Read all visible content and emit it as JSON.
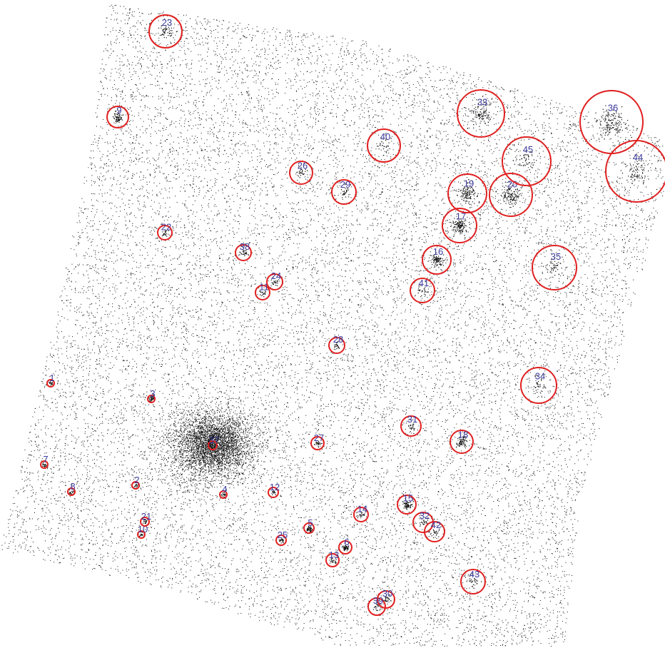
{
  "image": {
    "kind": "x-ray-event-map",
    "colors": {
      "background": "#ffffff",
      "photon": "#111111",
      "circle": "#e02020",
      "label": "#3b3b9e"
    }
  },
  "sources": [
    {
      "id": "1"
    },
    {
      "id": "2"
    },
    {
      "id": "3"
    },
    {
      "id": "4"
    },
    {
      "id": "5"
    },
    {
      "id": "6"
    },
    {
      "id": "7"
    },
    {
      "id": "8"
    },
    {
      "id": "9"
    },
    {
      "id": "10"
    },
    {
      "id": "11"
    },
    {
      "id": "12"
    },
    {
      "id": "13"
    },
    {
      "id": "14"
    },
    {
      "id": "15"
    },
    {
      "id": "16"
    },
    {
      "id": "17"
    },
    {
      "id": "18"
    },
    {
      "id": "19"
    },
    {
      "id": "20"
    },
    {
      "id": "21"
    },
    {
      "id": "22"
    },
    {
      "id": "23"
    },
    {
      "id": "24"
    },
    {
      "id": "25"
    },
    {
      "id": "26"
    },
    {
      "id": "27"
    },
    {
      "id": "28"
    },
    {
      "id": "29"
    },
    {
      "id": "30"
    },
    {
      "id": "31"
    },
    {
      "id": "32"
    },
    {
      "id": "33"
    },
    {
      "id": "34"
    },
    {
      "id": "35"
    },
    {
      "id": "36"
    },
    {
      "id": "37"
    },
    {
      "id": "38"
    },
    {
      "id": "39"
    },
    {
      "id": "40"
    },
    {
      "id": "41"
    },
    {
      "id": "42"
    },
    {
      "id": "43"
    },
    {
      "id": "44"
    },
    {
      "id": "45"
    }
  ]
}
